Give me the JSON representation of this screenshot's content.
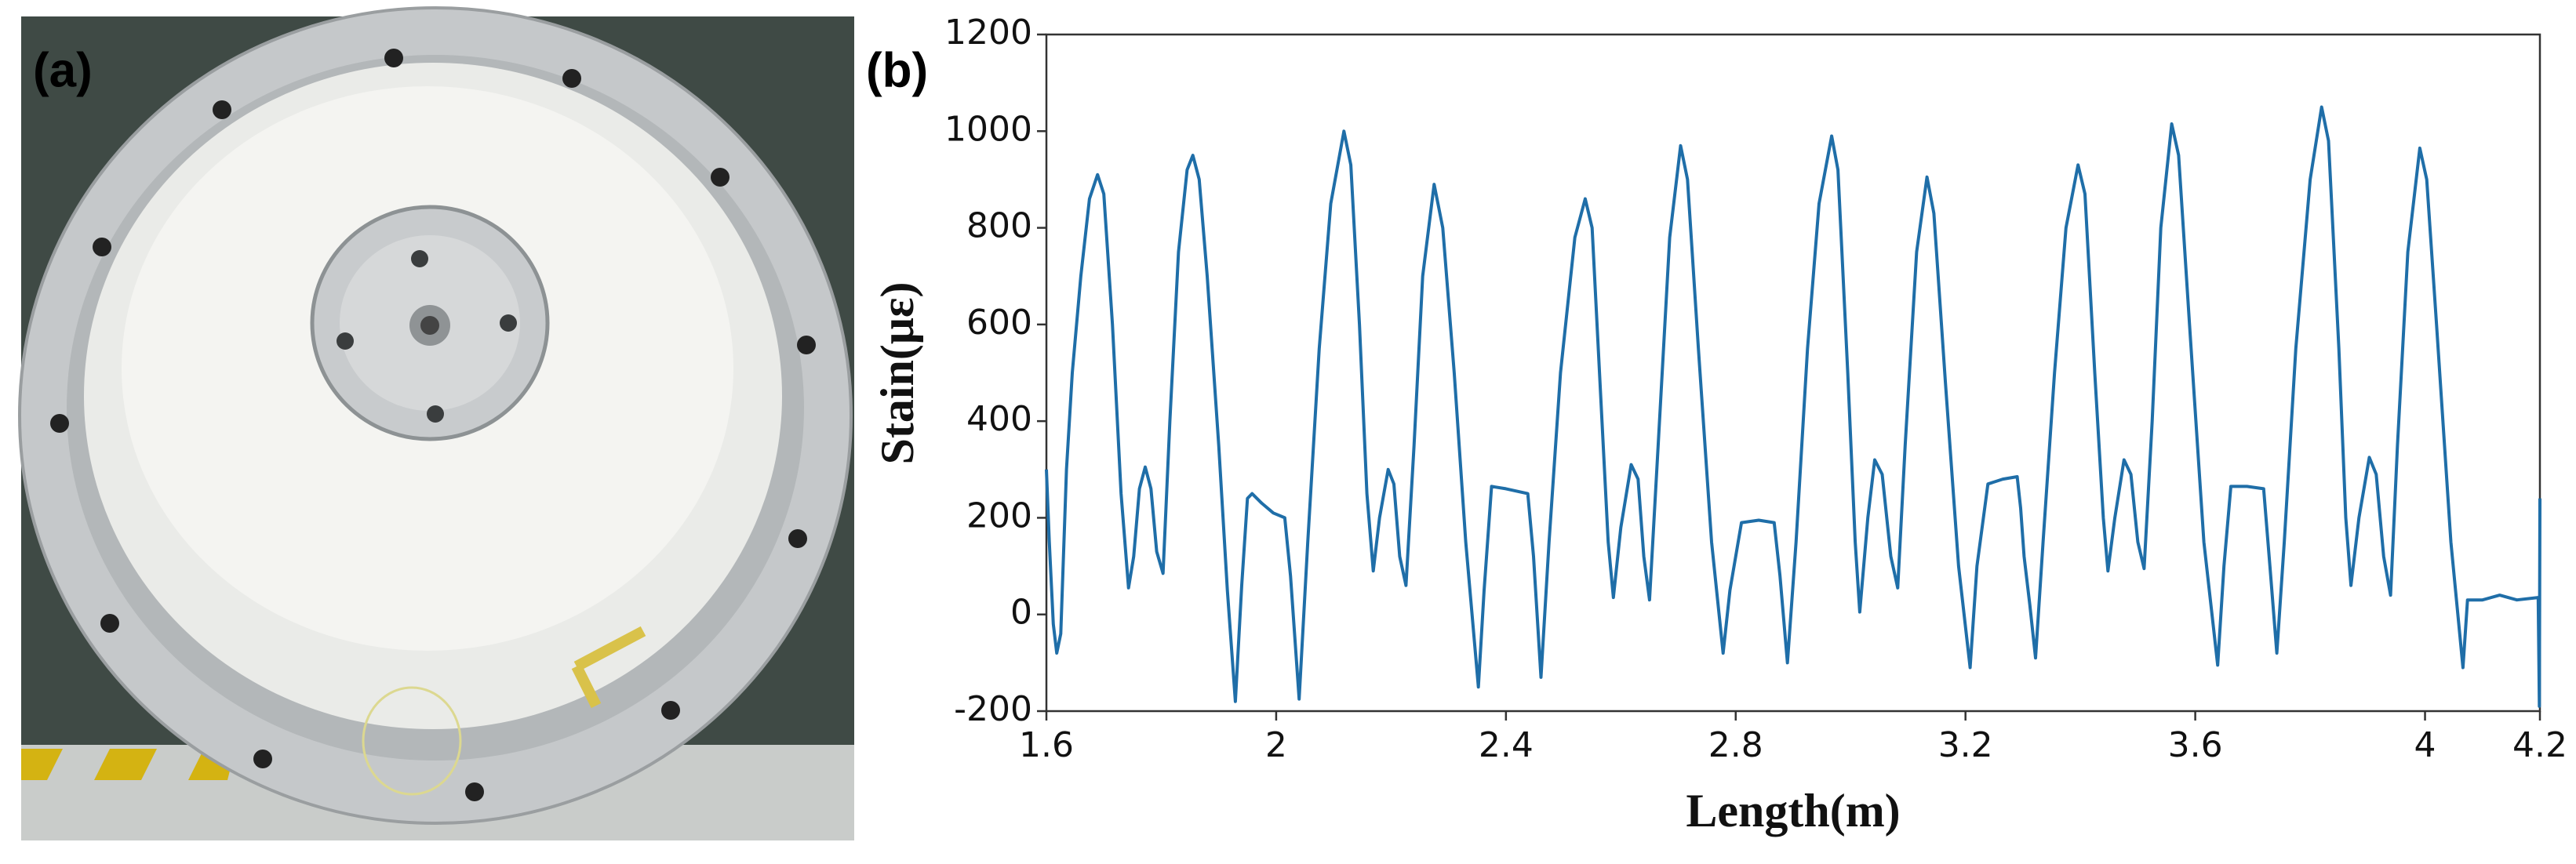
{
  "panel_labels": [
    "(a)",
    "(b)"
  ],
  "chart_data": {
    "type": "line",
    "x_label": "Length(m)",
    "y_label": "Stain(με)",
    "color": "#1f6ea8",
    "xlim": [
      1.6,
      4.2
    ],
    "xticks": [
      1.6,
      2,
      2.4,
      2.8,
      3.2,
      3.6,
      4,
      4.2
    ],
    "ylim": [
      -200,
      1200
    ],
    "yticks": [
      -200,
      0,
      200,
      400,
      600,
      800,
      1000,
      1200
    ],
    "grid": false,
    "x": [
      1.6,
      1.605,
      1.612,
      1.618,
      1.625,
      1.635,
      1.645,
      1.66,
      1.675,
      1.689,
      1.7,
      1.715,
      1.73,
      1.743,
      1.752,
      1.762,
      1.772,
      1.782,
      1.792,
      1.803,
      1.815,
      1.83,
      1.845,
      1.855,
      1.866,
      1.88,
      1.9,
      1.915,
      1.929,
      1.94,
      1.95,
      1.958,
      1.975,
      1.995,
      2.015,
      2.025,
      2.04,
      2.055,
      2.075,
      2.095,
      2.118,
      2.13,
      2.145,
      2.158,
      2.169,
      2.18,
      2.195,
      2.205,
      2.215,
      2.226,
      2.24,
      2.255,
      2.275,
      2.29,
      2.31,
      2.33,
      2.352,
      2.362,
      2.375,
      2.4,
      2.438,
      2.448,
      2.461,
      2.475,
      2.495,
      2.52,
      2.538,
      2.55,
      2.565,
      2.578,
      2.587,
      2.6,
      2.618,
      2.63,
      2.64,
      2.65,
      2.665,
      2.685,
      2.704,
      2.716,
      2.735,
      2.758,
      2.778,
      2.79,
      2.81,
      2.84,
      2.867,
      2.877,
      2.89,
      2.905,
      2.925,
      2.945,
      2.967,
      2.978,
      2.995,
      3.008,
      3.016,
      3.03,
      3.042,
      3.055,
      3.07,
      3.082,
      3.095,
      3.115,
      3.133,
      3.145,
      3.165,
      3.188,
      3.208,
      3.22,
      3.239,
      3.265,
      3.29,
      3.296,
      3.302,
      3.312,
      3.322,
      3.335,
      3.355,
      3.375,
      3.396,
      3.408,
      3.425,
      3.44,
      3.448,
      3.46,
      3.476,
      3.488,
      3.5,
      3.511,
      3.525,
      3.54,
      3.559,
      3.571,
      3.59,
      3.615,
      3.639,
      3.65,
      3.662,
      3.69,
      3.719,
      3.73,
      3.742,
      3.755,
      3.775,
      3.8,
      3.82,
      3.832,
      3.85,
      3.862,
      3.871,
      3.885,
      3.903,
      3.915,
      3.928,
      3.94,
      3.952,
      3.97,
      3.991,
      4.003,
      4.02,
      4.045,
      4.066,
      4.074,
      4.1,
      4.13,
      4.16,
      4.197,
      4.199,
      4.2
    ],
    "values": [
      300,
      150,
      -20,
      -80,
      -40,
      300,
      500,
      700,
      860,
      910,
      870,
      600,
      250,
      55,
      120,
      260,
      305,
      260,
      130,
      85,
      400,
      750,
      920,
      950,
      900,
      700,
      350,
      50,
      -180,
      60,
      240,
      250,
      230,
      210,
      200,
      80,
      -175,
      150,
      550,
      850,
      1000,
      930,
      600,
      250,
      90,
      200,
      300,
      270,
      120,
      60,
      350,
      700,
      890,
      800,
      500,
      150,
      -150,
      50,
      265,
      260,
      250,
      120,
      -130,
      150,
      500,
      780,
      860,
      800,
      450,
      150,
      35,
      180,
      310,
      280,
      120,
      30,
      350,
      780,
      970,
      900,
      550,
      150,
      -80,
      50,
      190,
      195,
      190,
      80,
      -100,
      150,
      550,
      850,
      990,
      920,
      500,
      150,
      5,
      200,
      320,
      290,
      120,
      55,
      350,
      750,
      905,
      830,
      480,
      100,
      -110,
      100,
      270,
      280,
      285,
      220,
      120,
      20,
      -90,
      150,
      500,
      800,
      930,
      870,
      500,
      200,
      90,
      200,
      320,
      290,
      150,
      95,
      400,
      800,
      1015,
      950,
      600,
      150,
      -105,
      100,
      265,
      265,
      260,
      100,
      -80,
      150,
      550,
      900,
      1050,
      980,
      550,
      200,
      60,
      200,
      325,
      290,
      120,
      40,
      350,
      750,
      965,
      900,
      600,
      150,
      -110,
      30,
      30,
      40,
      30,
      35,
      -190,
      240
    ]
  }
}
